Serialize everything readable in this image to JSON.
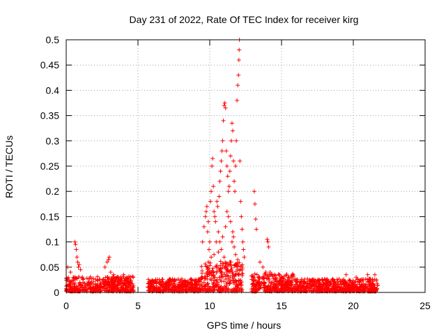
{
  "chart_data": {
    "type": "scatter",
    "title": "Day 231 of 2022, Rate Of TEC Index for receiver kirg",
    "xlabel": "GPS time / hours",
    "ylabel": "ROTI / TECUs",
    "xlim": [
      0,
      25
    ],
    "ylim": [
      0,
      0.5
    ],
    "xticks": [
      0,
      5,
      10,
      15,
      20,
      25
    ],
    "yticks": [
      0,
      0.05,
      0.1,
      0.15,
      0.2,
      0.25,
      0.3,
      0.35,
      0.4,
      0.45,
      0.5
    ],
    "grid": true,
    "marker": "plus",
    "color": "#ff0000",
    "segments": [
      {
        "x0": 0.0,
        "x1": 4.7,
        "ymax": 0.03
      },
      {
        "x0": 5.7,
        "x1": 9.4,
        "ymax": 0.025
      },
      {
        "x0": 9.4,
        "x1": 12.3,
        "ymax": 0.06
      },
      {
        "x0": 12.9,
        "x1": 16.0,
        "ymax": 0.035
      },
      {
        "x0": 16.0,
        "x1": 21.7,
        "ymax": 0.025
      }
    ],
    "points": [
      [
        0.1,
        0.05
      ],
      [
        0.3,
        0.04
      ],
      [
        0.5,
        0.03
      ],
      [
        0.6,
        0.1
      ],
      [
        0.65,
        0.095
      ],
      [
        0.7,
        0.085
      ],
      [
        0.75,
        0.07
      ],
      [
        0.8,
        0.06
      ],
      [
        0.85,
        0.05
      ],
      [
        0.9,
        0.055
      ],
      [
        1.0,
        0.045
      ],
      [
        2.7,
        0.05
      ],
      [
        2.85,
        0.06
      ],
      [
        2.95,
        0.065
      ],
      [
        3.0,
        0.07
      ],
      [
        3.1,
        0.04
      ],
      [
        3.3,
        0.035
      ],
      [
        4.0,
        0.035
      ],
      [
        9.5,
        0.1
      ],
      [
        9.6,
        0.13
      ],
      [
        9.7,
        0.15
      ],
      [
        9.75,
        0.16
      ],
      [
        9.8,
        0.17
      ],
      [
        9.85,
        0.12
      ],
      [
        9.9,
        0.14
      ],
      [
        9.95,
        0.085
      ],
      [
        10.0,
        0.1
      ],
      [
        10.05,
        0.18
      ],
      [
        10.1,
        0.2
      ],
      [
        10.15,
        0.25
      ],
      [
        10.2,
        0.265
      ],
      [
        10.25,
        0.21
      ],
      [
        10.3,
        0.16
      ],
      [
        10.35,
        0.15
      ],
      [
        10.4,
        0.14
      ],
      [
        10.45,
        0.1
      ],
      [
        10.5,
        0.18
      ],
      [
        10.55,
        0.17
      ],
      [
        10.6,
        0.12
      ],
      [
        10.65,
        0.19
      ],
      [
        10.7,
        0.22
      ],
      [
        10.75,
        0.24
      ],
      [
        10.8,
        0.26
      ],
      [
        10.85,
        0.28
      ],
      [
        10.9,
        0.3
      ],
      [
        10.95,
        0.34
      ],
      [
        11.0,
        0.37
      ],
      [
        11.05,
        0.375
      ],
      [
        11.1,
        0.365
      ],
      [
        11.15,
        0.28
      ],
      [
        11.2,
        0.25
      ],
      [
        11.25,
        0.23
      ],
      [
        11.3,
        0.2
      ],
      [
        11.35,
        0.21
      ],
      [
        11.4,
        0.24
      ],
      [
        11.45,
        0.27
      ],
      [
        11.5,
        0.3
      ],
      [
        11.55,
        0.335
      ],
      [
        11.6,
        0.32
      ],
      [
        11.65,
        0.26
      ],
      [
        11.7,
        0.22
      ],
      [
        11.75,
        0.2
      ],
      [
        11.8,
        0.25
      ],
      [
        11.85,
        0.3
      ],
      [
        11.9,
        0.38
      ],
      [
        11.95,
        0.41
      ],
      [
        12.0,
        0.43
      ],
      [
        12.03,
        0.46
      ],
      [
        12.05,
        0.48
      ],
      [
        12.07,
        0.5
      ],
      [
        12.1,
        0.26
      ],
      [
        12.15,
        0.18
      ],
      [
        12.2,
        0.15
      ],
      [
        12.25,
        0.125
      ],
      [
        12.3,
        0.1
      ],
      [
        12.35,
        0.085
      ],
      [
        12.4,
        0.07
      ],
      [
        11.2,
        0.16
      ],
      [
        11.3,
        0.15
      ],
      [
        11.45,
        0.14
      ],
      [
        11.6,
        0.12
      ],
      [
        11.1,
        0.13
      ],
      [
        10.9,
        0.11
      ],
      [
        11.7,
        0.09
      ],
      [
        11.8,
        0.075
      ],
      [
        11.95,
        0.065
      ],
      [
        10.7,
        0.1
      ],
      [
        10.8,
        0.085
      ],
      [
        10.6,
        0.08
      ],
      [
        11.0,
        0.07
      ],
      [
        11.4,
        0.06
      ],
      [
        10.3,
        0.075
      ],
      [
        10.1,
        0.07
      ],
      [
        9.9,
        0.06
      ],
      [
        11.55,
        0.1
      ],
      [
        11.65,
        0.11
      ],
      [
        13.1,
        0.2
      ],
      [
        13.15,
        0.175
      ],
      [
        13.2,
        0.145
      ],
      [
        13.25,
        0.125
      ],
      [
        14.0,
        0.105
      ],
      [
        14.05,
        0.1
      ],
      [
        14.1,
        0.09
      ],
      [
        13.5,
        0.06
      ],
      [
        13.7,
        0.05
      ],
      [
        13.9,
        0.04
      ],
      [
        14.2,
        0.04
      ],
      [
        14.5,
        0.035
      ],
      [
        15.0,
        0.03
      ],
      [
        15.5,
        0.03
      ],
      [
        19.5,
        0.035
      ],
      [
        20.2,
        0.03
      ],
      [
        21.0,
        0.035
      ],
      [
        21.5,
        0.035
      ]
    ]
  }
}
